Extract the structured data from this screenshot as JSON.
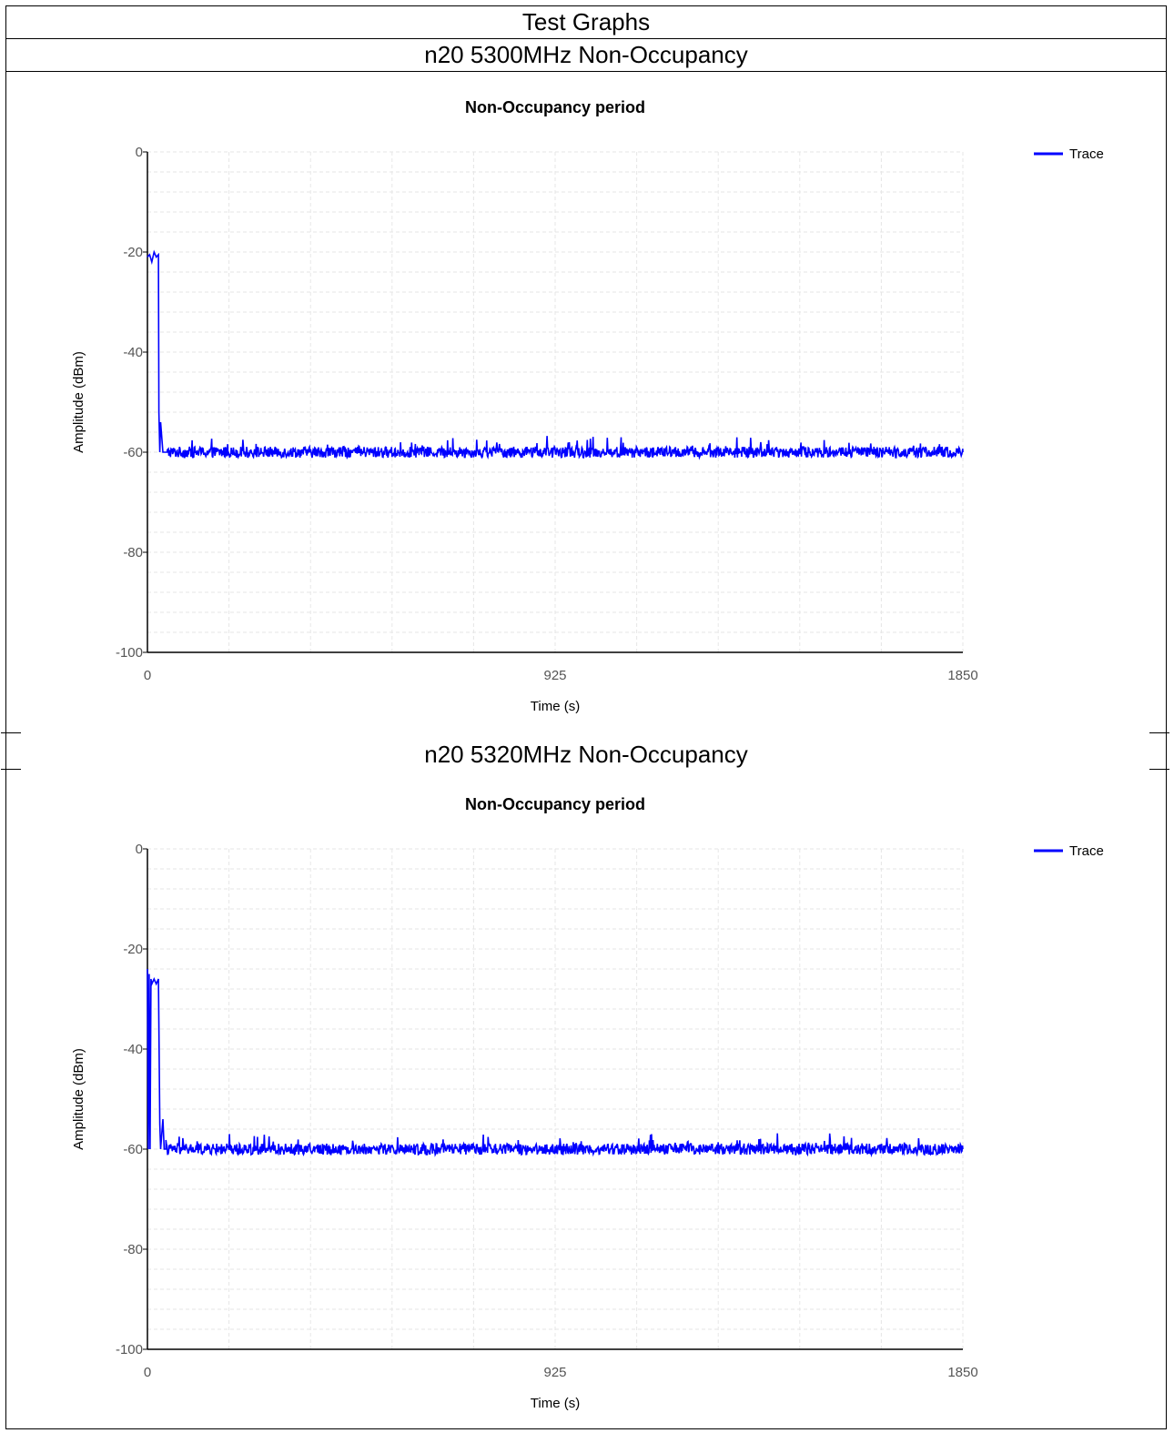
{
  "page": {
    "title": "Test Graphs",
    "sections": [
      {
        "heading": "n20 5300MHz Non-Occupancy"
      },
      {
        "heading": "n20 5320MHz Non-Occupancy"
      }
    ]
  },
  "colors": {
    "trace": "#0000ff",
    "grid": "#e6e6e6",
    "axis": "#000000"
  },
  "chart_data": [
    {
      "type": "line",
      "title": "Non-Occupancy period",
      "xlabel": "Time (s)",
      "ylabel": "Amplitude (dBm)",
      "xlim": [
        0,
        1850
      ],
      "ylim": [
        -100,
        0
      ],
      "xticks": [
        "0",
        "925",
        "1850"
      ],
      "yticks": [
        "0",
        "-20",
        "-40",
        "-60",
        "-80",
        "-100"
      ],
      "grid": true,
      "legend": "top-right",
      "series": [
        {
          "name": "Trace",
          "pre_level_dbm": -21,
          "x": [
            0,
            5,
            10,
            15,
            20,
            25,
            26,
            28,
            30,
            35,
            38,
            40,
            45,
            1850
          ],
          "y": [
            -21,
            -20.5,
            -22,
            -20,
            -21,
            -20.5,
            -52,
            -60,
            -54,
            -60,
            -60,
            -60,
            -60,
            -60
          ]
        }
      ]
    },
    {
      "type": "line",
      "title": "Non-Occupancy period",
      "xlabel": "Time (s)",
      "ylabel": "Amplitude (dBm)",
      "xlim": [
        0,
        1850
      ],
      "ylim": [
        -100,
        0
      ],
      "xticks": [
        "0",
        "925",
        "1850"
      ],
      "yticks": [
        "0",
        "-20",
        "-40",
        "-60",
        "-80",
        "-100"
      ],
      "grid": true,
      "legend": "top-right",
      "series": [
        {
          "name": "Trace",
          "pre_level_dbm": -27,
          "x": [
            0,
            2,
            4,
            6,
            8,
            10,
            15,
            20,
            25,
            28,
            30,
            35,
            38,
            42,
            1850
          ],
          "y": [
            -24,
            -60,
            -25,
            -60,
            -26,
            -27,
            -26,
            -27,
            -26,
            -55,
            -60,
            -54,
            -60,
            -60,
            -60
          ]
        }
      ]
    }
  ]
}
